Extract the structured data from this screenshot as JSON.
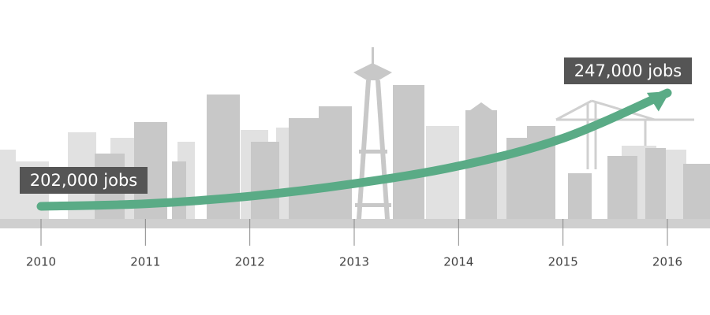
{
  "chart_data": {
    "type": "line",
    "categories": [
      "2010",
      "2011",
      "2012",
      "2013",
      "2014",
      "2015",
      "2016"
    ],
    "values": [
      202000,
      203000,
      206000,
      211000,
      218000,
      229000,
      247000
    ],
    "value_labels": [
      "202,000 jobs",
      null,
      null,
      null,
      null,
      null,
      "247,000 jobs"
    ],
    "color": "#5aab86"
  }
}
